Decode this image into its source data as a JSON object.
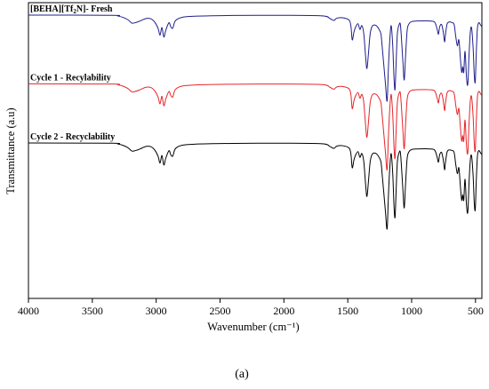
{
  "chart_data": {
    "type": "line",
    "xlabel": "Wavenumber (cm⁻¹)",
    "ylabel": "Transmittance (a.u)",
    "panel_label": "(a)",
    "xlim": [
      4000,
      450
    ],
    "x_reversed": true,
    "x_ticks": [
      4000,
      3500,
      3000,
      2500,
      2000,
      1500,
      1000,
      500
    ],
    "y_ticks_shown": false,
    "grid": false,
    "legend": "none",
    "series": [
      {
        "name": "[BEHA][Tf2N]- Fresh",
        "label_parts": [
          "[BEHA][Tf",
          "2",
          "N]- Fresh"
        ],
        "color": "#1f1f8c",
        "baseline": 0.0,
        "points": [
          [
            4000,
            0.0
          ],
          [
            3350,
            0.1
          ],
          [
            3300,
            0.5
          ],
          [
            3260,
            1.2
          ],
          [
            3220,
            2.5
          ],
          [
            3190,
            4.2
          ],
          [
            3160,
            3.9
          ],
          [
            3130,
            3.2
          ],
          [
            3080,
            1.8
          ],
          [
            3040,
            2.0
          ],
          [
            3010,
            3.8
          ],
          [
            2985,
            7.0
          ],
          [
            2970,
            10.5
          ],
          [
            2955,
            6.5
          ],
          [
            2940,
            11.5
          ],
          [
            2925,
            8.0
          ],
          [
            2900,
            4.0
          ],
          [
            2885,
            6.2
          ],
          [
            2870,
            6.8
          ],
          [
            2850,
            3.0
          ],
          [
            2800,
            1.2
          ],
          [
            2700,
            0.6
          ],
          [
            2400,
            0.2
          ],
          [
            2000,
            0.1
          ],
          [
            1700,
            0.4
          ],
          [
            1640,
            1.8
          ],
          [
            1610,
            2.8
          ],
          [
            1585,
            1.6
          ],
          [
            1540,
            1.4
          ],
          [
            1490,
            2.6
          ],
          [
            1475,
            6.0
          ],
          [
            1465,
            13.0
          ],
          [
            1452,
            9.0
          ],
          [
            1440,
            6.5
          ],
          [
            1420,
            4.5
          ],
          [
            1405,
            7.5
          ],
          [
            1390,
            5.5
          ],
          [
            1375,
            9.5
          ],
          [
            1360,
            22.0
          ],
          [
            1350,
            28.0
          ],
          [
            1338,
            20.0
          ],
          [
            1325,
            10.0
          ],
          [
            1310,
            6.0
          ],
          [
            1290,
            5.2
          ],
          [
            1270,
            6.0
          ],
          [
            1255,
            7.5
          ],
          [
            1240,
            10.0
          ],
          [
            1230,
            17.0
          ],
          [
            1218,
            26.0
          ],
          [
            1205,
            36.0
          ],
          [
            1192,
            45.0
          ],
          [
            1182,
            28.0
          ],
          [
            1172,
            14.0
          ],
          [
            1160,
            5.5
          ],
          [
            1148,
            16.0
          ],
          [
            1138,
            33.0
          ],
          [
            1130,
            39.0
          ],
          [
            1122,
            26.0
          ],
          [
            1112,
            10.0
          ],
          [
            1098,
            5.0
          ],
          [
            1088,
            5.0
          ],
          [
            1078,
            14.0
          ],
          [
            1068,
            25.0
          ],
          [
            1058,
            34.0
          ],
          [
            1048,
            22.0
          ],
          [
            1035,
            8.0
          ],
          [
            1020,
            4.5
          ],
          [
            1000,
            3.4
          ],
          [
            960,
            3.1
          ],
          [
            900,
            3.0
          ],
          [
            860,
            3.1
          ],
          [
            820,
            3.7
          ],
          [
            800,
            7.5
          ],
          [
            790,
            10.0
          ],
          [
            780,
            6.0
          ],
          [
            765,
            5.0
          ],
          [
            752,
            9.0
          ],
          [
            742,
            14.0
          ],
          [
            735,
            10.0
          ],
          [
            722,
            4.6
          ],
          [
            705,
            3.6
          ],
          [
            690,
            3.8
          ],
          [
            668,
            4.8
          ],
          [
            655,
            11.0
          ],
          [
            642,
            16.0
          ],
          [
            630,
            13.0
          ],
          [
            618,
            23.0
          ],
          [
            608,
            30.0
          ],
          [
            600,
            27.0
          ],
          [
            592,
            30.0
          ],
          [
            582,
            19.0
          ],
          [
            570,
            33.0
          ],
          [
            560,
            36.0
          ],
          [
            550,
            20.0
          ],
          [
            540,
            8.5
          ],
          [
            530,
            7.0
          ],
          [
            518,
            18.0
          ],
          [
            510,
            31.0
          ],
          [
            502,
            35.0
          ],
          [
            494,
            20.0
          ],
          [
            485,
            7.0
          ],
          [
            475,
            4.0
          ],
          [
            462,
            5.0
          ],
          [
            452,
            6.0
          ]
        ]
      },
      {
        "name": "Cycle 1 - Recylability",
        "label_parts": [
          "Cycle 1 - Recylability"
        ],
        "color": "#e6262b",
        "baseline": 36.0,
        "points": [
          [
            4000,
            0.0
          ],
          [
            3350,
            0.1
          ],
          [
            3300,
            0.5
          ],
          [
            3260,
            1.2
          ],
          [
            3220,
            2.5
          ],
          [
            3190,
            4.2
          ],
          [
            3160,
            3.9
          ],
          [
            3130,
            3.2
          ],
          [
            3080,
            1.8
          ],
          [
            3040,
            2.0
          ],
          [
            3010,
            3.8
          ],
          [
            2985,
            7.0
          ],
          [
            2970,
            10.5
          ],
          [
            2955,
            6.5
          ],
          [
            2940,
            11.5
          ],
          [
            2925,
            8.0
          ],
          [
            2900,
            4.0
          ],
          [
            2885,
            6.2
          ],
          [
            2870,
            6.8
          ],
          [
            2850,
            3.0
          ],
          [
            2800,
            1.2
          ],
          [
            2700,
            0.6
          ],
          [
            2400,
            0.2
          ],
          [
            2000,
            0.1
          ],
          [
            1700,
            0.4
          ],
          [
            1640,
            1.8
          ],
          [
            1610,
            2.8
          ],
          [
            1585,
            1.6
          ],
          [
            1540,
            1.4
          ],
          [
            1490,
            2.6
          ],
          [
            1475,
            6.0
          ],
          [
            1465,
            13.0
          ],
          [
            1452,
            9.0
          ],
          [
            1440,
            6.5
          ],
          [
            1420,
            4.5
          ],
          [
            1405,
            7.5
          ],
          [
            1390,
            5.5
          ],
          [
            1375,
            9.5
          ],
          [
            1360,
            22.0
          ],
          [
            1350,
            28.0
          ],
          [
            1338,
            20.0
          ],
          [
            1325,
            10.0
          ],
          [
            1310,
            6.0
          ],
          [
            1290,
            5.2
          ],
          [
            1270,
            6.0
          ],
          [
            1255,
            7.5
          ],
          [
            1240,
            10.0
          ],
          [
            1230,
            17.0
          ],
          [
            1218,
            26.0
          ],
          [
            1205,
            36.0
          ],
          [
            1192,
            45.0
          ],
          [
            1182,
            28.0
          ],
          [
            1172,
            14.0
          ],
          [
            1160,
            5.5
          ],
          [
            1148,
            16.0
          ],
          [
            1138,
            33.0
          ],
          [
            1130,
            39.0
          ],
          [
            1122,
            26.0
          ],
          [
            1112,
            10.0
          ],
          [
            1098,
            5.0
          ],
          [
            1088,
            5.0
          ],
          [
            1078,
            14.0
          ],
          [
            1068,
            25.0
          ],
          [
            1058,
            34.0
          ],
          [
            1048,
            22.0
          ],
          [
            1035,
            8.0
          ],
          [
            1020,
            4.5
          ],
          [
            1000,
            3.4
          ],
          [
            960,
            3.1
          ],
          [
            900,
            3.0
          ],
          [
            860,
            3.1
          ],
          [
            820,
            3.7
          ],
          [
            800,
            7.5
          ],
          [
            790,
            10.0
          ],
          [
            780,
            6.0
          ],
          [
            765,
            5.0
          ],
          [
            752,
            9.0
          ],
          [
            742,
            14.0
          ],
          [
            735,
            10.0
          ],
          [
            722,
            4.6
          ],
          [
            705,
            3.6
          ],
          [
            690,
            3.8
          ],
          [
            668,
            4.8
          ],
          [
            655,
            11.0
          ],
          [
            642,
            16.0
          ],
          [
            630,
            13.0
          ],
          [
            618,
            23.0
          ],
          [
            608,
            30.0
          ],
          [
            600,
            27.0
          ],
          [
            592,
            30.0
          ],
          [
            582,
            19.0
          ],
          [
            570,
            33.0
          ],
          [
            560,
            36.0
          ],
          [
            550,
            20.0
          ],
          [
            540,
            8.5
          ],
          [
            530,
            7.0
          ],
          [
            518,
            18.0
          ],
          [
            510,
            31.0
          ],
          [
            502,
            35.0
          ],
          [
            494,
            20.0
          ],
          [
            485,
            7.0
          ],
          [
            475,
            4.0
          ],
          [
            462,
            5.0
          ],
          [
            452,
            6.0
          ]
        ]
      },
      {
        "name": "Cycle 2 - Recyclability",
        "label_parts": [
          "Cycle 2 - Recyclability"
        ],
        "color": "#000000",
        "baseline": 67.0,
        "points": [
          [
            4000,
            0.0
          ],
          [
            3350,
            0.1
          ],
          [
            3300,
            0.5
          ],
          [
            3260,
            1.2
          ],
          [
            3220,
            2.5
          ],
          [
            3190,
            4.2
          ],
          [
            3160,
            3.9
          ],
          [
            3130,
            3.2
          ],
          [
            3080,
            1.8
          ],
          [
            3040,
            2.0
          ],
          [
            3010,
            3.8
          ],
          [
            2985,
            7.0
          ],
          [
            2970,
            10.5
          ],
          [
            2955,
            6.5
          ],
          [
            2940,
            11.5
          ],
          [
            2925,
            8.0
          ],
          [
            2900,
            4.0
          ],
          [
            2885,
            6.2
          ],
          [
            2870,
            6.8
          ],
          [
            2850,
            3.0
          ],
          [
            2800,
            1.2
          ],
          [
            2700,
            0.6
          ],
          [
            2400,
            0.2
          ],
          [
            2000,
            0.1
          ],
          [
            1700,
            0.4
          ],
          [
            1640,
            1.8
          ],
          [
            1610,
            2.8
          ],
          [
            1585,
            1.6
          ],
          [
            1540,
            1.4
          ],
          [
            1490,
            2.6
          ],
          [
            1475,
            6.0
          ],
          [
            1465,
            13.0
          ],
          [
            1452,
            9.0
          ],
          [
            1440,
            6.5
          ],
          [
            1420,
            4.5
          ],
          [
            1405,
            7.5
          ],
          [
            1390,
            5.5
          ],
          [
            1375,
            9.5
          ],
          [
            1360,
            22.0
          ],
          [
            1350,
            28.0
          ],
          [
            1338,
            20.0
          ],
          [
            1325,
            10.0
          ],
          [
            1310,
            6.0
          ],
          [
            1290,
            5.2
          ],
          [
            1270,
            6.0
          ],
          [
            1255,
            7.5
          ],
          [
            1240,
            10.0
          ],
          [
            1230,
            17.0
          ],
          [
            1218,
            26.0
          ],
          [
            1205,
            36.0
          ],
          [
            1192,
            45.0
          ],
          [
            1182,
            28.0
          ],
          [
            1172,
            14.0
          ],
          [
            1160,
            5.5
          ],
          [
            1148,
            16.0
          ],
          [
            1138,
            33.0
          ],
          [
            1130,
            39.0
          ],
          [
            1122,
            26.0
          ],
          [
            1112,
            10.0
          ],
          [
            1098,
            5.0
          ],
          [
            1088,
            5.0
          ],
          [
            1078,
            14.0
          ],
          [
            1068,
            25.0
          ],
          [
            1058,
            34.0
          ],
          [
            1048,
            22.0
          ],
          [
            1035,
            8.0
          ],
          [
            1020,
            4.5
          ],
          [
            1000,
            3.4
          ],
          [
            960,
            3.1
          ],
          [
            900,
            3.0
          ],
          [
            860,
            3.1
          ],
          [
            820,
            3.7
          ],
          [
            800,
            7.5
          ],
          [
            790,
            10.0
          ],
          [
            780,
            6.0
          ],
          [
            765,
            5.0
          ],
          [
            752,
            9.0
          ],
          [
            742,
            14.0
          ],
          [
            735,
            10.0
          ],
          [
            722,
            4.6
          ],
          [
            705,
            3.6
          ],
          [
            690,
            3.8
          ],
          [
            668,
            4.8
          ],
          [
            655,
            11.0
          ],
          [
            642,
            16.0
          ],
          [
            630,
            13.0
          ],
          [
            618,
            23.0
          ],
          [
            608,
            30.0
          ],
          [
            600,
            27.0
          ],
          [
            592,
            30.0
          ],
          [
            582,
            19.0
          ],
          [
            570,
            33.0
          ],
          [
            560,
            36.0
          ],
          [
            550,
            20.0
          ],
          [
            540,
            8.5
          ],
          [
            530,
            7.0
          ],
          [
            518,
            18.0
          ],
          [
            510,
            31.0
          ],
          [
            502,
            35.0
          ],
          [
            494,
            20.0
          ],
          [
            485,
            7.0
          ],
          [
            475,
            4.0
          ],
          [
            462,
            5.0
          ],
          [
            452,
            6.0
          ]
        ]
      }
    ]
  }
}
